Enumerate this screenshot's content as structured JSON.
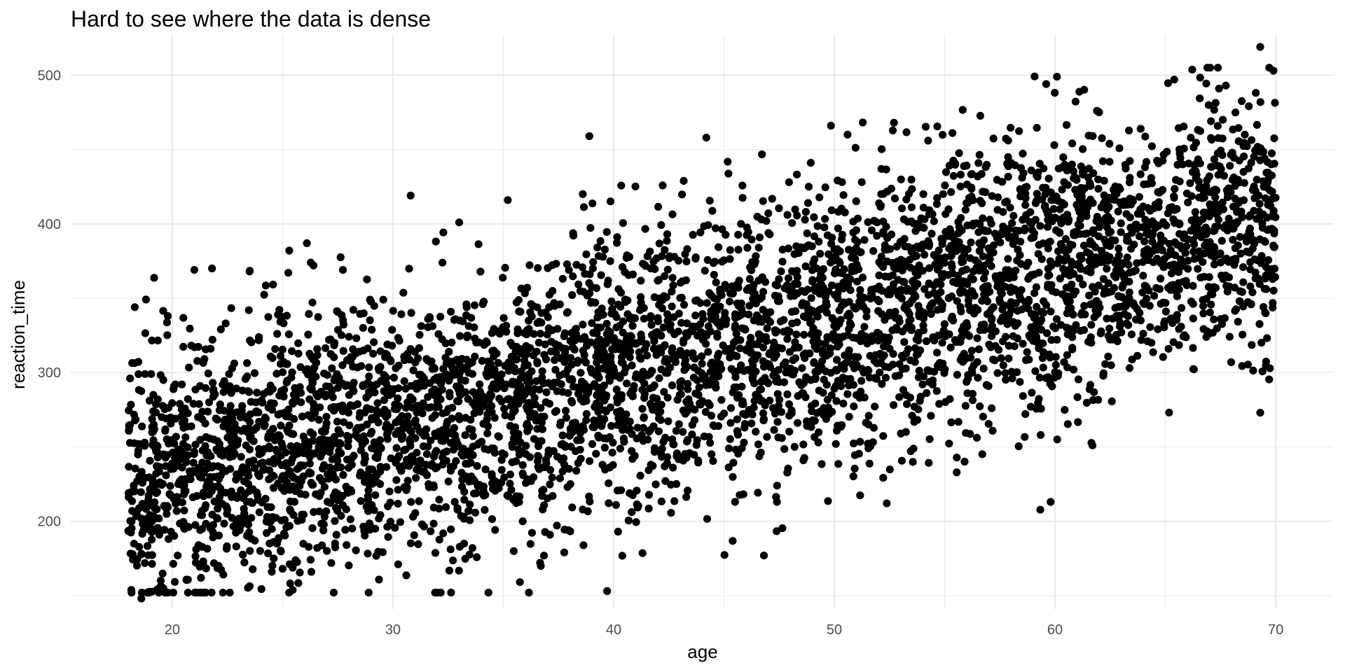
{
  "chart_data": {
    "type": "scatter",
    "title": "Hard to see where the data is dense",
    "xlabel": "age",
    "ylabel": "reaction_time",
    "xlim": [
      15.4,
      72.6
    ],
    "ylim": [
      141,
      527
    ],
    "x_ticks": [
      20,
      30,
      40,
      50,
      60,
      70
    ],
    "y_ticks": [
      200,
      300,
      400,
      500
    ],
    "x_tick_labels": [
      "20",
      "30",
      "40",
      "50",
      "60",
      "70"
    ],
    "y_tick_labels": [
      "200",
      "300",
      "400",
      "500"
    ],
    "grid": true,
    "point_color": "#000000",
    "trend": {
      "intercept": 158,
      "slope": 3.55,
      "noise_sd": 45
    },
    "n_points": 5000,
    "series": [
      {
        "x": [
          18.3,
          19.8,
          21.0,
          21.8,
          23.5,
          25.3,
          26.1,
          26.4,
          38.9,
          30.8,
          33.0,
          35.2,
          38.6,
          44.2,
          50.6,
          52.7,
          59.6,
          61.9,
          65.4,
          69.3,
          69.9,
          18.6,
          19.3,
          19.6,
          21.3,
          22.1,
          24.6,
          25.0,
          26.3,
          29.2,
          33.6,
          36.7,
          40.2,
          45.5,
          47.4,
          58.9,
          59.8,
          60.1,
          61.7,
          69.3
        ],
        "y": [
          344,
          338,
          369,
          370,
          368,
          382,
          387,
          372,
          459,
          419,
          401,
          416,
          420,
          458,
          460,
          468,
          494,
          476,
          497,
          519,
          503,
          148,
          154,
          155,
          162,
          170,
          175,
          168,
          166,
          195,
          182,
          170,
          193,
          213,
          213,
          277,
          213,
          255,
          251,
          273
        ]
      }
    ]
  }
}
